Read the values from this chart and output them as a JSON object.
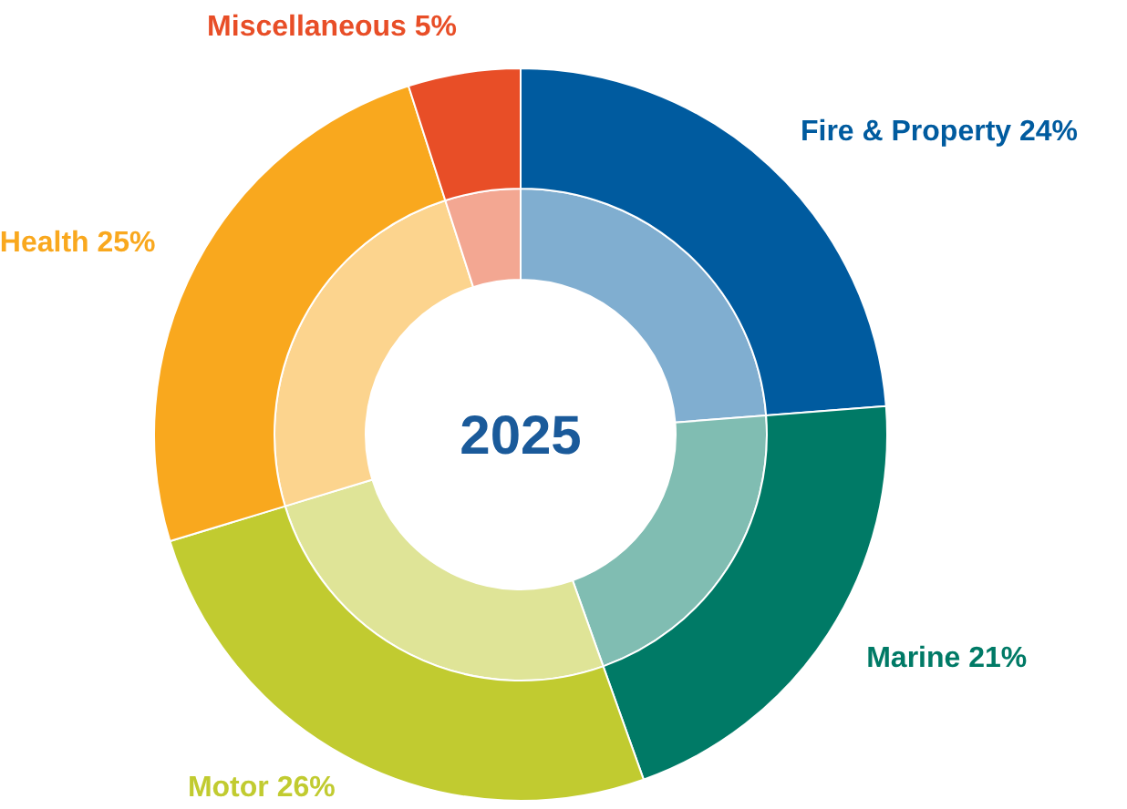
{
  "chart_data": {
    "type": "donut",
    "title": "2025",
    "categories": [
      "Fire & Property",
      "Marine",
      "Motor",
      "Health",
      "Miscellaneous"
    ],
    "series": [
      {
        "values": [
          24,
          21,
          26,
          25,
          5
        ],
        "colors": [
          "#80aed0",
          "#80bdb2",
          "#dfe497",
          "#fcd48e",
          "#f3a792"
        ]
      },
      {
        "values": [
          24,
          21,
          26,
          25,
          5
        ],
        "colors": [
          "#005b9f",
          "#007a66",
          "#c1cb30",
          "#f9a81e",
          "#e84e27"
        ],
        "value_labels": [
          "24%",
          "21%",
          "26%",
          "25%",
          "5%"
        ]
      }
    ]
  }
}
